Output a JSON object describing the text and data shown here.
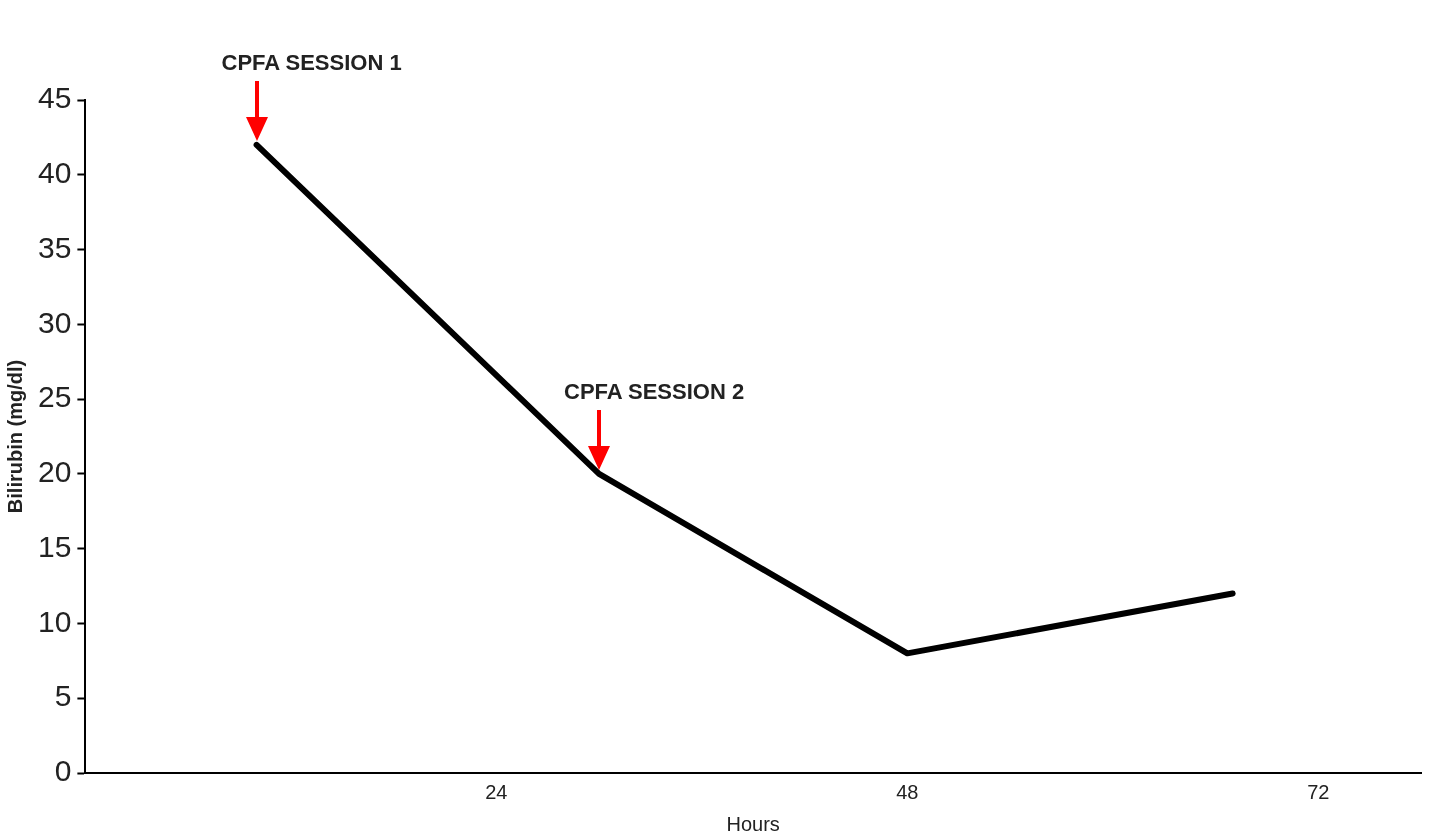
{
  "chart_data": {
    "type": "line",
    "xlabel": "Hours",
    "ylabel": "Bilirubin (mg/dl)",
    "x": [
      10,
      30,
      48,
      67
    ],
    "series": [
      {
        "color": "#000000",
        "values": [
          42,
          20,
          8,
          12
        ]
      }
    ],
    "xlim": [
      0,
      78
    ],
    "xticks": [
      24,
      48,
      72
    ],
    "ylim": [
      0,
      45
    ],
    "yticks": [
      0,
      5,
      10,
      15,
      20,
      25,
      30,
      35,
      40,
      45
    ],
    "grid": false,
    "legend": false,
    "marker": "none",
    "line_style": "solid",
    "annotations": [
      "CPFA SESSION 1",
      "CPFA SESSION 2"
    ]
  }
}
